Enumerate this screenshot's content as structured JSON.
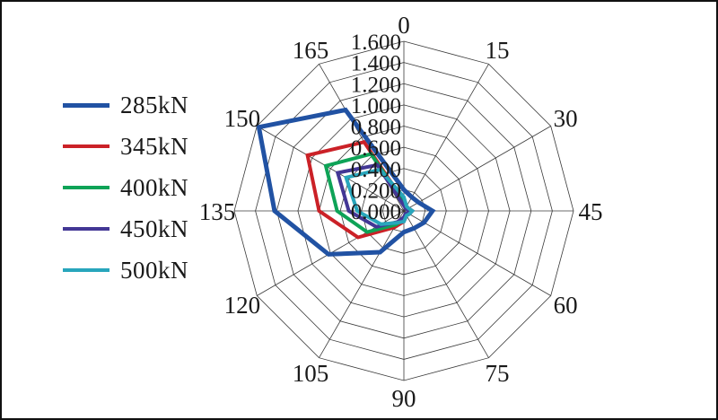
{
  "figure": {
    "background": "#ffffff",
    "border_color": "#111111"
  },
  "chart_data": {
    "type": "radar",
    "title": "",
    "angle_unit": "degrees",
    "angle_labels": [
      "0",
      "15",
      "30",
      "45",
      "60",
      "75",
      "90",
      "105",
      "120",
      "135",
      "150",
      "165"
    ],
    "radial_ticks": [
      "1.600",
      "1.400",
      "1.200",
      "1.000",
      "0.800",
      "0.600",
      "0.400",
      "0.200",
      "0.000"
    ],
    "r_min": 0.0,
    "r_max": 1.6,
    "r_step": 0.2,
    "grid": {
      "shape": "polygon-web",
      "sides": 12,
      "color": "#3a3a3a",
      "stroke_width": 0.8
    },
    "legend_position": "left",
    "series": [
      {
        "name": "285kN",
        "color": "#2152a3",
        "width": 5,
        "values": [
          0.2,
          0.15,
          0.16,
          0.27,
          0.22,
          0.19,
          0.2,
          0.45,
          0.82,
          1.22,
          1.58,
          1.1
        ]
      },
      {
        "name": "345kN",
        "color": "#cb2127",
        "width": 4,
        "values": [
          0.09,
          0.05,
          0.05,
          0.08,
          0.06,
          0.05,
          0.1,
          0.18,
          0.5,
          0.8,
          1.05,
          0.75
        ]
      },
      {
        "name": "400kN",
        "color": "#0ea357",
        "width": 4,
        "values": [
          0.08,
          0.04,
          0.04,
          0.06,
          0.05,
          0.04,
          0.08,
          0.15,
          0.4,
          0.63,
          0.85,
          0.62
        ]
      },
      {
        "name": "450kN",
        "color": "#433795",
        "width": 4,
        "values": [
          0.05,
          0.03,
          0.03,
          0.05,
          0.04,
          0.03,
          0.06,
          0.12,
          0.3,
          0.52,
          0.72,
          0.5
        ]
      },
      {
        "name": "500kN",
        "color": "#28a6bc",
        "width": 4,
        "values": [
          0.13,
          0.05,
          0.05,
          0.08,
          0.06,
          0.05,
          0.1,
          0.13,
          0.25,
          0.44,
          0.63,
          0.45
        ]
      }
    ]
  }
}
